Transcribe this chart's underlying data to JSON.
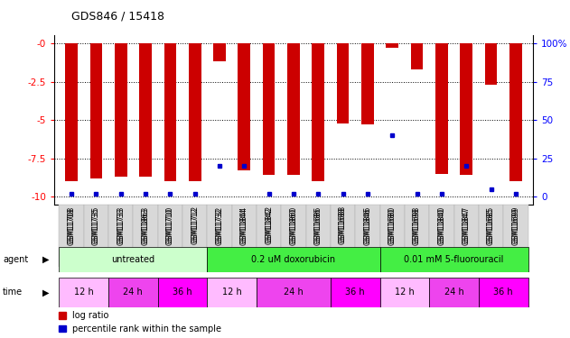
{
  "title": "GDS846 / 15418",
  "samples": [
    "GSM11708",
    "GSM11735",
    "GSM11733",
    "GSM11863",
    "GSM11710",
    "GSM11712",
    "GSM11732",
    "GSM11844",
    "GSM11842",
    "GSM11860",
    "GSM11686",
    "GSM11688",
    "GSM11846",
    "GSM11680",
    "GSM11698",
    "GSM11840",
    "GSM11847",
    "GSM11685",
    "GSM11699"
  ],
  "log_ratio": [
    -9.0,
    -8.8,
    -8.7,
    -8.7,
    -9.0,
    -9.0,
    -1.2,
    -8.3,
    -8.6,
    -8.6,
    -9.0,
    -5.2,
    -5.3,
    -0.3,
    -1.7,
    -8.5,
    -8.6,
    -2.7,
    -9.0
  ],
  "percentile_rank": [
    2,
    2,
    2,
    2,
    2,
    2,
    20,
    20,
    2,
    2,
    2,
    2,
    2,
    40,
    2,
    2,
    20,
    5,
    2
  ],
  "agents": [
    {
      "label": "untreated",
      "start": 0,
      "end": 6,
      "color": "#ccffcc"
    },
    {
      "label": "0.2 uM doxorubicin",
      "start": 6,
      "end": 13,
      "color": "#44ee44"
    },
    {
      "label": "0.01 mM 5-fluorouracil",
      "start": 13,
      "end": 19,
      "color": "#44ee44"
    }
  ],
  "times": [
    {
      "label": "12 h",
      "start": 0,
      "end": 2,
      "color": "#ffbbff"
    },
    {
      "label": "24 h",
      "start": 2,
      "end": 4,
      "color": "#ee44ee"
    },
    {
      "label": "36 h",
      "start": 4,
      "end": 6,
      "color": "#ff22ff"
    },
    {
      "label": "12 h",
      "start": 6,
      "end": 8,
      "color": "#ffbbff"
    },
    {
      "label": "24 h",
      "start": 8,
      "end": 11,
      "color": "#ee44ee"
    },
    {
      "label": "36 h",
      "start": 11,
      "end": 13,
      "color": "#ff22ff"
    },
    {
      "label": "12 h",
      "start": 13,
      "end": 15,
      "color": "#ffbbff"
    },
    {
      "label": "24 h",
      "start": 15,
      "end": 17,
      "color": "#ee44ee"
    },
    {
      "label": "36 h",
      "start": 17,
      "end": 19,
      "color": "#ff22ff"
    }
  ],
  "ylim": [
    -10.5,
    0.5
  ],
  "yticks_left": [
    0,
    -2.5,
    -5.0,
    -7.5,
    -10
  ],
  "yticks_right": [
    100,
    75,
    50,
    25,
    0
  ],
  "bar_color": "#cc0000",
  "dot_color": "#0000cc",
  "background_color": "#ffffff"
}
